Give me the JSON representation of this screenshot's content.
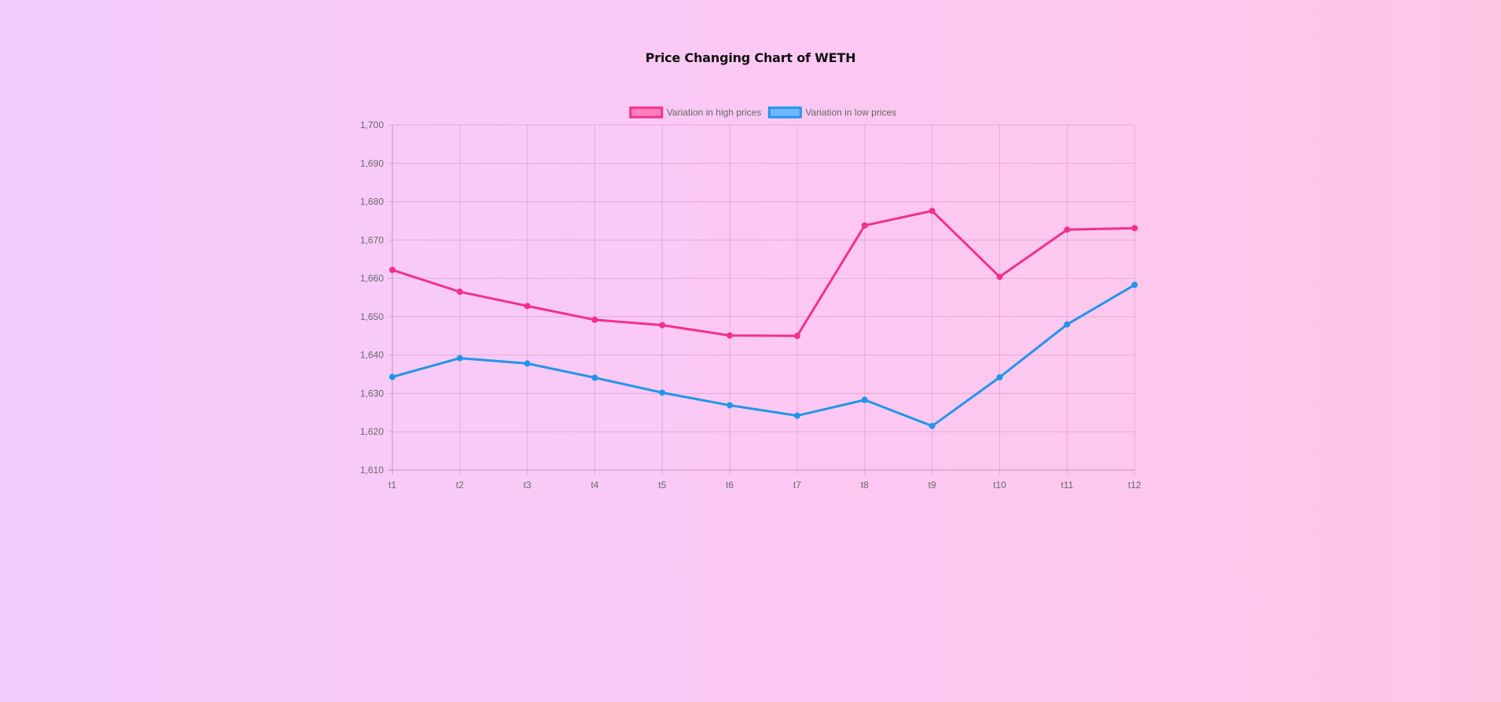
{
  "page": {
    "title": "Price Changing Chart of WETH"
  },
  "chart_data": {
    "type": "line",
    "title": "Price Changing Chart of WETH",
    "xlabel": "",
    "ylabel": "",
    "categories": [
      "t1",
      "t2",
      "t3",
      "t4",
      "t5",
      "t6",
      "t7",
      "t8",
      "t9",
      "t10",
      "t11",
      "t12"
    ],
    "ylim": [
      1610,
      1700
    ],
    "ytick_step": 10,
    "grid": true,
    "legend_position": "top",
    "series": [
      {
        "name": "Variation in high prices",
        "color": "#f2318c",
        "fill": "#ff7fbf",
        "values": [
          1662.2,
          1656.5,
          1652.8,
          1649.2,
          1647.8,
          1645.1,
          1645.0,
          1673.8,
          1677.6,
          1660.4,
          1672.7,
          1673.1
        ]
      },
      {
        "name": "Variation in low prices",
        "color": "#2196e8",
        "fill": "#6fb8ff",
        "values": [
          1634.3,
          1639.2,
          1637.8,
          1634.1,
          1630.2,
          1626.9,
          1624.2,
          1628.3,
          1621.5,
          1634.2,
          1648.0,
          1658.3
        ]
      }
    ]
  }
}
